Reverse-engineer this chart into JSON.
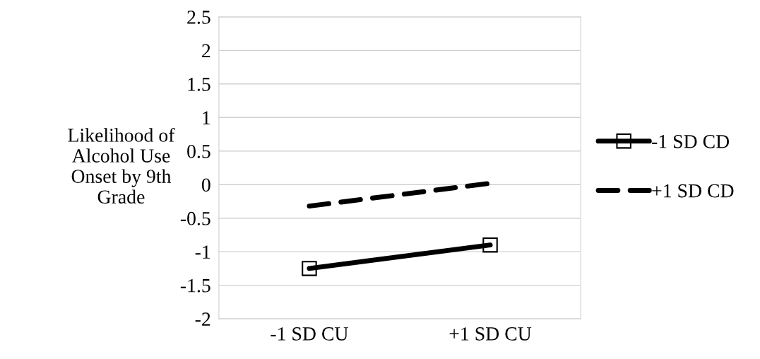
{
  "chart_data": {
    "type": "line",
    "ylabel": "Likelihood of\nAlcohol Use\nOnset by 9th\nGrade",
    "categories": [
      "-1 SD CU",
      "+1 SD CU"
    ],
    "series": [
      {
        "name": "-1 SD CD",
        "color": "#000000",
        "values": [
          -1.25,
          -0.9
        ],
        "marker": "square",
        "line_style": "solid"
      },
      {
        "name": "+1 SD CD",
        "color": "#000000",
        "values": [
          -0.32,
          0.02
        ],
        "marker": "none",
        "line_style": "dashed"
      }
    ],
    "ylim": [
      -2,
      2.5
    ],
    "yticks": [
      -2,
      -1.5,
      -1,
      -0.5,
      0,
      0.5,
      1,
      1.5,
      2,
      2.5
    ],
    "grid": "y",
    "legend": "right"
  }
}
